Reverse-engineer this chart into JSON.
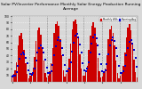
{
  "title": "Solar PV/Inverter Performance Monthly Solar Energy Production Running Average",
  "title_fontsize": 3.2,
  "bar_color": "#cc0000",
  "avg_color": "#0000cc",
  "background_color": "#d8d8d8",
  "plot_bg_color": "#d8d8d8",
  "grid_color": "#ffffff",
  "values": [
    8,
    12,
    18,
    30,
    55,
    70,
    75,
    65,
    48,
    28,
    12,
    6,
    9,
    14,
    22,
    38,
    62,
    78,
    82,
    72,
    52,
    32,
    14,
    7,
    10,
    16,
    28,
    52,
    75,
    88,
    92,
    85,
    65,
    40,
    18,
    8,
    12,
    20,
    35,
    58,
    80,
    92,
    95,
    88,
    68,
    42,
    20,
    9,
    10,
    15,
    25,
    48,
    70,
    85,
    90,
    82,
    60,
    36,
    16,
    7,
    8,
    13,
    20,
    40,
    65,
    80,
    85,
    75,
    55,
    32,
    14,
    6,
    9,
    14,
    24,
    45,
    68,
    82,
    88,
    78,
    58,
    34,
    15,
    7
  ],
  "running_avg": [
    8,
    9,
    10,
    15,
    25,
    35,
    42,
    45,
    42,
    36,
    28,
    18,
    12,
    11,
    13,
    20,
    32,
    44,
    52,
    56,
    52,
    44,
    34,
    22,
    14,
    13,
    16,
    26,
    40,
    54,
    63,
    67,
    62,
    52,
    40,
    26,
    16,
    16,
    20,
    30,
    46,
    60,
    70,
    73,
    68,
    57,
    44,
    28,
    17,
    16,
    20,
    30,
    45,
    58,
    68,
    72,
    66,
    55,
    42,
    27,
    16,
    15,
    18,
    27,
    42,
    55,
    64,
    68,
    62,
    51,
    39,
    25,
    14,
    14,
    16,
    25,
    40,
    52,
    61,
    64,
    58,
    48,
    36,
    23
  ],
  "ylim": [
    0,
    100
  ],
  "ytick_vals": [
    10,
    20,
    30,
    40,
    50,
    60,
    70,
    80,
    90,
    100
  ],
  "legend_entries": [
    "Monthly kWh",
    "Running Avg"
  ],
  "legend_colors": [
    "#cc0000",
    "#0000cc"
  ],
  "num_years": 7,
  "months_per_year": 12
}
